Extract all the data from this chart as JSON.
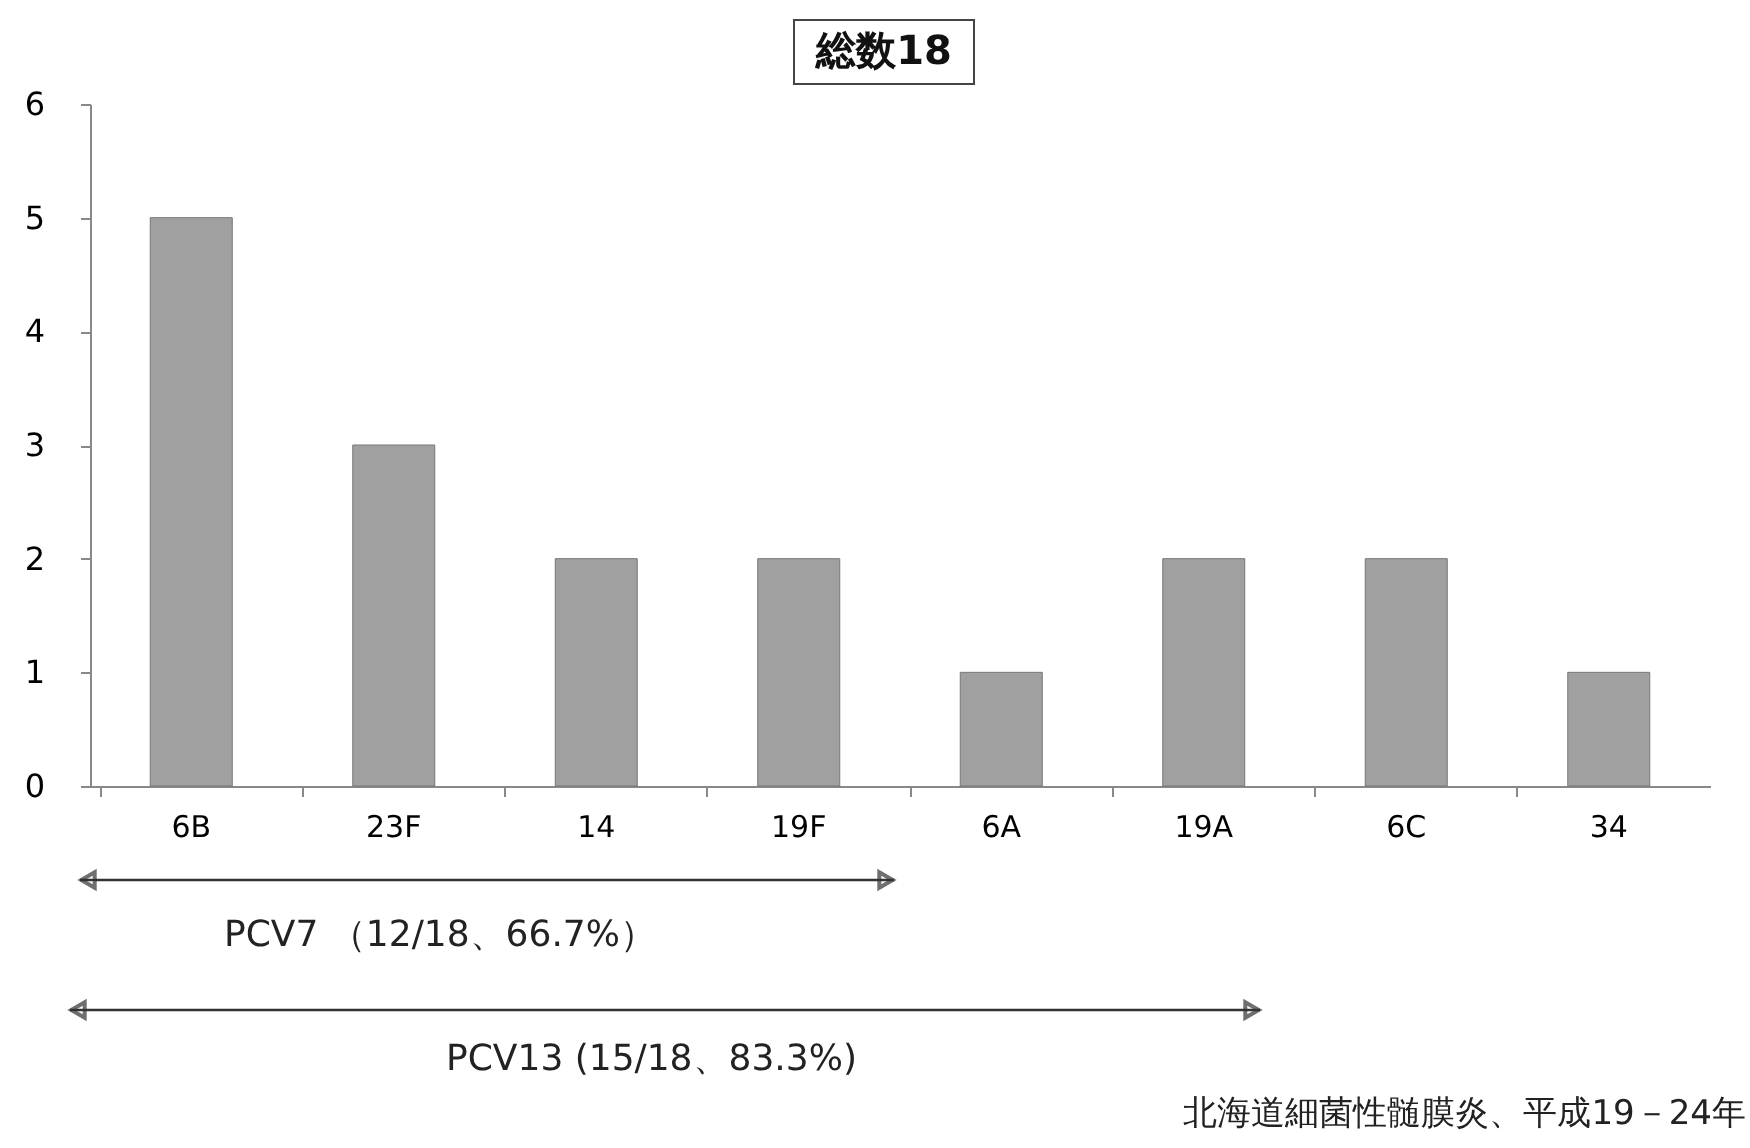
{
  "chart_data": {
    "type": "bar",
    "title": "総数18",
    "categories": [
      "6B",
      "23F",
      "14",
      "19F",
      "6A",
      "19A",
      "6C",
      "34"
    ],
    "values": [
      5,
      3,
      2,
      2,
      1,
      2,
      2,
      1
    ],
    "color": "#a0a0a0",
    "ylim": [
      0,
      6
    ],
    "yticks": [
      0,
      1,
      2,
      3,
      4,
      5,
      6
    ],
    "grid": false,
    "annotations": [
      "PCV7 （12/18、66.7%）",
      "PCV13 (15/18、83.3%)",
      "北海道細菌性髄膜炎、平成19－24年"
    ]
  }
}
